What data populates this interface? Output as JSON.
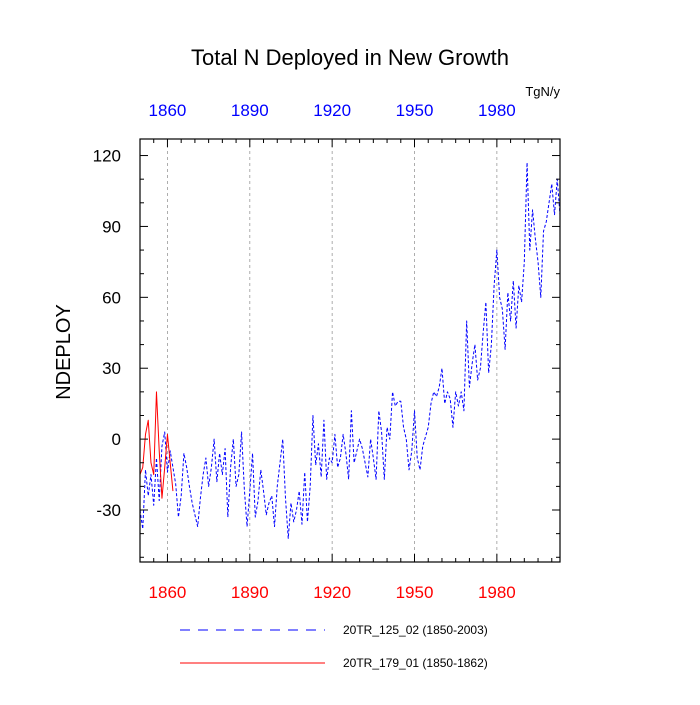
{
  "chart_data": {
    "type": "line",
    "title": "Total N Deployed in New Growth",
    "ylabel": "NDEPLOY",
    "units": "TgN/y",
    "xlim": [
      1850,
      2003
    ],
    "ylim": [
      -52,
      127
    ],
    "x_ticks": [
      1860,
      1890,
      1920,
      1950,
      1980
    ],
    "x_tick_labels_bottom": [
      "1860",
      "1890",
      "1920",
      "1950",
      "1980"
    ],
    "x_tick_labels_top": [
      "1860",
      "1890",
      "1920",
      "1950",
      "1980"
    ],
    "y_ticks": [
      -30,
      0,
      30,
      60,
      90,
      120
    ],
    "y_tick_labels": [
      "-30",
      "0",
      "30",
      "60",
      "90",
      "120"
    ],
    "grid": "vertical dashed at x ticks",
    "colors": {
      "series1": "#0000ff",
      "series2": "#ff0000",
      "axis": "#000000",
      "grid": "#999999"
    },
    "series": [
      {
        "name": "20TR_125_02 (1850-2003)",
        "style": "dashed",
        "color": "#0000ff",
        "x_start": 1850,
        "values": [
          -30,
          -38,
          -13,
          -24,
          -15,
          -28,
          -8,
          -26,
          -3,
          3,
          -14,
          -5,
          -12,
          -19,
          -33,
          -24,
          -6,
          -12,
          -20,
          -27,
          -32,
          -37,
          -25,
          -15,
          -8,
          -20,
          -12,
          0,
          -18,
          -6,
          -15,
          -4,
          -33,
          -12,
          0,
          -20,
          -15,
          3,
          -21,
          -37,
          -22,
          -6,
          -33,
          -26,
          -13,
          -22,
          -32,
          -27,
          -24,
          -37,
          -20,
          -10,
          0,
          -25,
          -42,
          -27,
          -35,
          -30,
          -22,
          -36,
          -14,
          -35,
          -20,
          10,
          -11,
          -2,
          -16,
          8,
          -17,
          -8,
          -10,
          2,
          -12,
          -8,
          2,
          -6,
          -17,
          12,
          -10,
          -5,
          0,
          -4,
          -10,
          -16,
          0,
          -8,
          -17,
          12,
          3,
          -17,
          5,
          0,
          20,
          14,
          16,
          16,
          5,
          0,
          -13,
          -5,
          12,
          -8,
          -13,
          -3,
          1,
          5,
          15,
          20,
          18,
          22,
          30,
          15,
          20,
          17,
          5,
          20,
          14,
          20,
          12,
          50,
          22,
          32,
          40,
          25,
          30,
          45,
          58,
          28,
          40,
          65,
          80,
          60,
          55,
          38,
          62,
          50,
          67,
          47,
          65,
          58,
          75,
          117,
          80,
          97,
          85,
          75,
          60,
          88,
          92,
          100,
          108,
          95,
          110,
          95
        ]
      },
      {
        "name": "20TR_179_01 (1850-1862)",
        "style": "solid",
        "color": "#ff0000",
        "x_start": 1850,
        "values": [
          -15,
          -12,
          2,
          8,
          -10,
          -15,
          20,
          -5,
          -25,
          -12,
          2,
          -10,
          -22
        ]
      }
    ],
    "legend": "bottom"
  }
}
